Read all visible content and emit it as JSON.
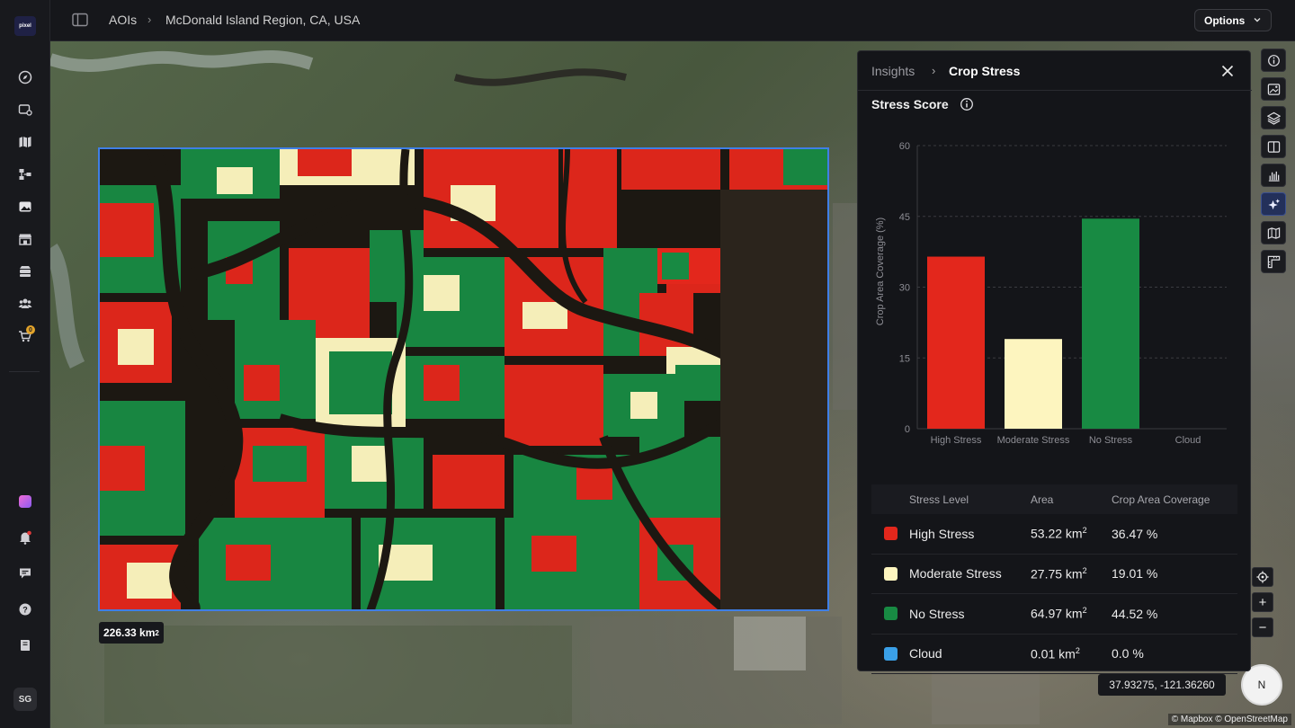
{
  "app": {
    "logo_text": "pixel",
    "user_initials": "SG",
    "cart_count": "0"
  },
  "breadcrumb": {
    "root": "AOIs",
    "current": "McDonald Island Region, CA, USA"
  },
  "toolbar": {
    "options_label": "Options"
  },
  "rail": {
    "top_icons": [
      "compass-icon",
      "image-settings-icon",
      "map-icon",
      "workflow-icon",
      "gallery-icon",
      "store-icon",
      "database-icon",
      "team-icon",
      "cart-icon"
    ],
    "bottom_icons": [
      "gradient-app-icon",
      "notification-icon",
      "chat-icon",
      "help-icon",
      "docs-icon"
    ]
  },
  "map": {
    "aoi_area_value": "226.33 km",
    "aoi_area_sup": "2",
    "coordinates": "37.93275, -121.36260",
    "compass_label": "N",
    "attribution": "© Mapbox © OpenStreetMap",
    "zoom_in": "+",
    "zoom_out": "−"
  },
  "panel": {
    "breadcrumb_root": "Insights",
    "breadcrumb_current": "Crop Stress",
    "section_title": "Stress Score"
  },
  "chart_data": {
    "type": "bar",
    "categories": [
      "High Stress",
      "Moderate Stress",
      "No Stress",
      "Cloud"
    ],
    "values": [
      36.47,
      19.01,
      44.52,
      0.0
    ],
    "colors": [
      "#e3271c",
      "#fdf5bf",
      "#188a43",
      "#3aa0e8"
    ],
    "ylabel": "Crop Area Coverage (%)",
    "yticks": [
      0,
      15,
      30,
      45,
      60
    ],
    "ylim": [
      0,
      60
    ],
    "grid": true
  },
  "table": {
    "headers": {
      "level": "Stress Level",
      "area": "Area",
      "coverage": "Crop Area Coverage"
    },
    "rows": [
      {
        "level": "High Stress",
        "area": "53.22 km",
        "area_sup": "2",
        "coverage": "36.47 %",
        "color": "#e3271c"
      },
      {
        "level": "Moderate Stress",
        "area": "27.75 km",
        "area_sup": "2",
        "coverage": "19.01 %",
        "color": "#fdf5bf"
      },
      {
        "level": "No Stress",
        "area": "64.97 km",
        "area_sup": "2",
        "coverage": "44.52 %",
        "color": "#188a43"
      },
      {
        "level": "Cloud",
        "area": "0.01 km",
        "area_sup": "2",
        "coverage": "0.0 %",
        "color": "#3aa0e8"
      }
    ]
  },
  "right_tools": [
    "info-icon",
    "image-icon",
    "layers-icon",
    "split-view-icon",
    "histogram-icon",
    "ai-insights-icon",
    "map-view-icon",
    "measure-icon"
  ]
}
